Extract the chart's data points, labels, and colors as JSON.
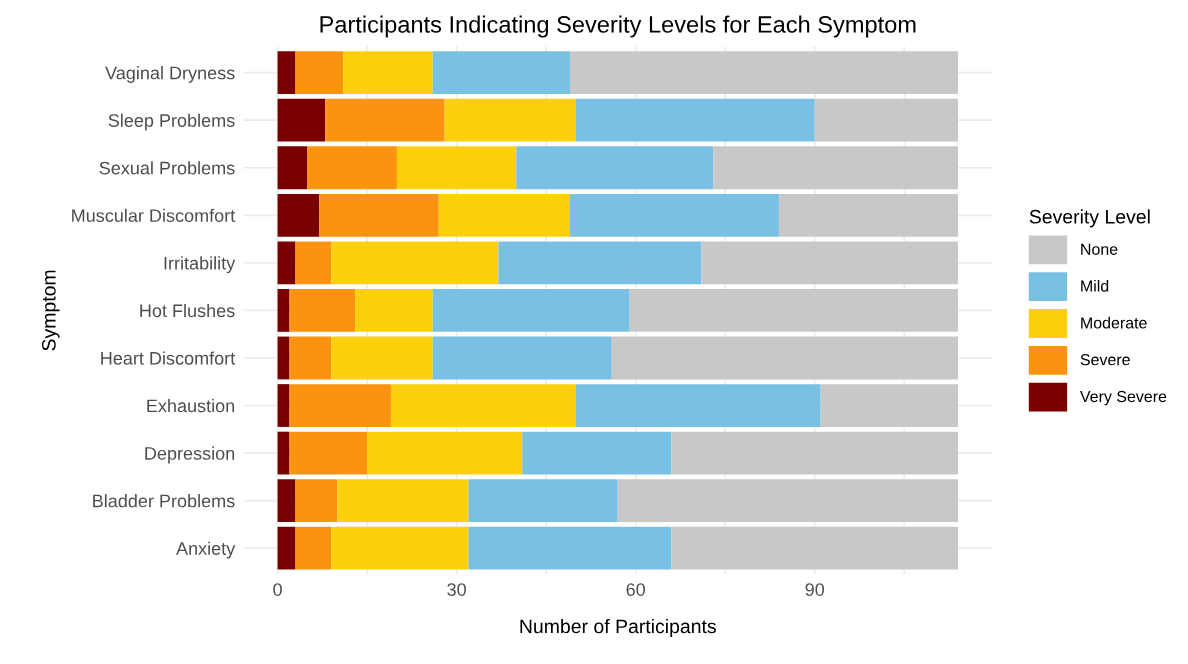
{
  "chart_data": {
    "type": "bar",
    "orientation": "horizontal",
    "stacked": true,
    "title": "Participants Indicating Severity Levels for Each Symptom",
    "xlabel": "Number of Participants",
    "ylabel": "Symptom",
    "legend_title": "Severity Level",
    "categories": [
      "Vaginal Dryness",
      "Sleep Problems",
      "Sexual Problems",
      "Muscular Discomfort",
      "Irritability",
      "Hot Flushes",
      "Heart Discomfort",
      "Exhaustion",
      "Depression",
      "Bladder Problems",
      "Anxiety"
    ],
    "series": [
      {
        "name": "Very Severe",
        "color": "#7a0000",
        "values": [
          3,
          8,
          5,
          7,
          3,
          2,
          2,
          2,
          2,
          3,
          3
        ]
      },
      {
        "name": "Severe",
        "color": "#fc930f",
        "values": [
          8,
          20,
          15,
          20,
          6,
          11,
          7,
          17,
          13,
          7,
          6
        ]
      },
      {
        "name": "Moderate",
        "color": "#fdd00e",
        "values": [
          15,
          22,
          20,
          22,
          28,
          13,
          17,
          31,
          26,
          22,
          23
        ]
      },
      {
        "name": "Mild",
        "color": "#78c1e4",
        "values": [
          23,
          40,
          33,
          35,
          34,
          33,
          30,
          41,
          25,
          25,
          34
        ]
      },
      {
        "name": "None",
        "color": "#c8c8c8",
        "values": [
          65,
          24,
          41,
          30,
          43,
          55,
          58,
          23,
          48,
          57,
          48
        ]
      }
    ],
    "xlim": [
      -5.7,
      119.7
    ],
    "xticks": [
      0,
      {
        "value": 15,
        "label": null
      },
      30,
      {
        "value": 45,
        "label": null
      },
      60,
      {
        "value": 75,
        "label": null
      },
      90,
      {
        "value": 105,
        "label": null
      }
    ],
    "grid": true,
    "legend": "right"
  }
}
